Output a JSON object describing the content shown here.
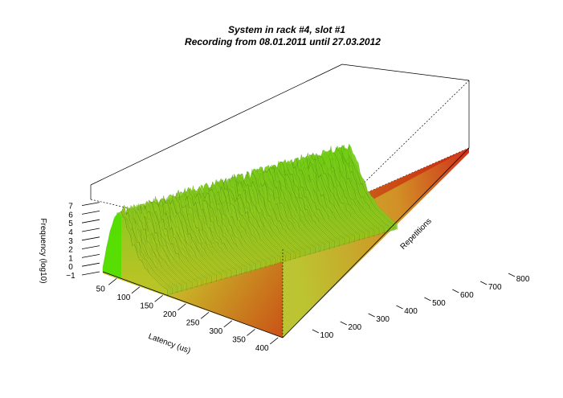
{
  "chart_data": {
    "type": "surface3d",
    "title": "System in rack #4, slot #1",
    "subtitle": "Recording from 08.01.2011 until 27.03.2012",
    "xlabel": "Latency (us)",
    "ylabel": "Repetitions",
    "zlabel": "Frequency (log10)",
    "x_ticks": [
      50,
      100,
      150,
      200,
      250,
      300,
      350,
      400
    ],
    "y_ticks": [
      100,
      200,
      300,
      400,
      500,
      600,
      700,
      800
    ],
    "z_ticks": [
      -1,
      0,
      1,
      2,
      3,
      4,
      5,
      6,
      7
    ],
    "xlim": [
      20,
      410
    ],
    "ylim": [
      0,
      860
    ],
    "zlim": [
      -1,
      7.5
    ],
    "colors": {
      "low": "#cc2a10",
      "mid": "#c8c22a",
      "high": "#4fe000",
      "box": "#000000"
    },
    "profile": {
      "latency": [
        20,
        35,
        45,
        55,
        65,
        75,
        85,
        100,
        120,
        150,
        200,
        300,
        410
      ],
      "log_frequency": [
        -0.5,
        3.8,
        5.8,
        6.5,
        5.8,
        4.8,
        3.5,
        2.0,
        0.8,
        -0.2,
        -0.8,
        -1.0,
        -1.0
      ]
    }
  }
}
